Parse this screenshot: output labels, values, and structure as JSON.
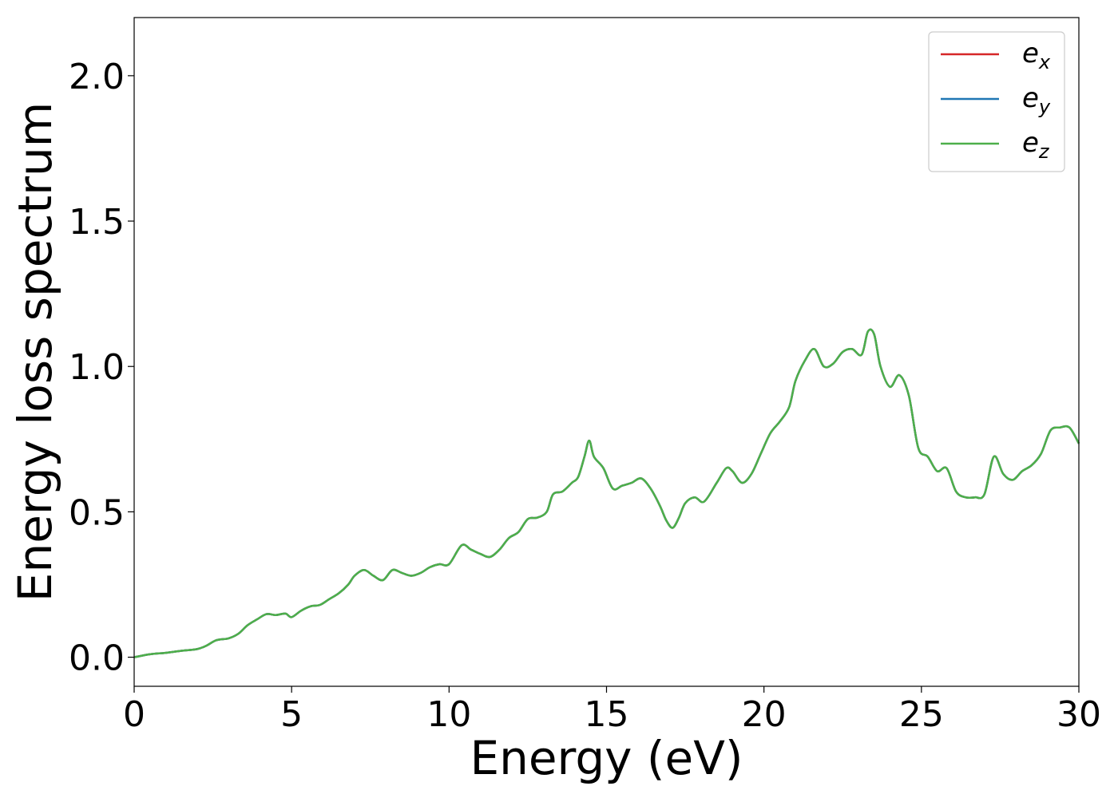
{
  "chart_data": {
    "type": "line",
    "title": "",
    "xlabel": "Energy (eV)",
    "ylabel": "Energy loss spectrum",
    "xlim": [
      0,
      30
    ],
    "ylim": [
      -0.1,
      2.2
    ],
    "xticks": [
      0,
      5,
      10,
      15,
      20,
      25,
      30
    ],
    "xtick_labels": [
      "0",
      "5",
      "10",
      "15",
      "20",
      "25",
      "30"
    ],
    "yticks": [
      0.0,
      0.5,
      1.0,
      1.5,
      2.0
    ],
    "ytick_labels": [
      "0.0",
      "0.5",
      "1.0",
      "1.5",
      "2.0"
    ],
    "grid": false,
    "legend_position": "top-right",
    "x": [
      0,
      0.5,
      1,
      1.5,
      2,
      2.3,
      2.6,
      3,
      3.3,
      3.6,
      3.9,
      4.2,
      4.5,
      4.8,
      5,
      5.3,
      5.6,
      5.9,
      6.2,
      6.5,
      6.8,
      7,
      7.3,
      7.6,
      7.9,
      8.2,
      8.5,
      8.8,
      9.1,
      9.4,
      9.7,
      10,
      10.4,
      10.7,
      11,
      11.3,
      11.6,
      11.9,
      12.2,
      12.5,
      12.8,
      13.1,
      13.3,
      13.6,
      13.9,
      14.1,
      14.3,
      14.45,
      14.6,
      14.9,
      15.2,
      15.5,
      15.8,
      16.1,
      16.4,
      16.7,
      16.9,
      17.1,
      17.3,
      17.5,
      17.8,
      18.1,
      18.5,
      18.8,
      19,
      19.3,
      19.6,
      19.9,
      20.2,
      20.5,
      20.8,
      21,
      21.3,
      21.6,
      21.9,
      22.2,
      22.5,
      22.8,
      23.1,
      23.3,
      23.5,
      23.7,
      24,
      24.3,
      24.6,
      24.9,
      25.2,
      25.5,
      25.8,
      26.1,
      26.4,
      26.7,
      27,
      27.3,
      27.6,
      27.9,
      28.2,
      28.5,
      28.8,
      29.1,
      29.4,
      29.7,
      30
    ],
    "series": [
      {
        "name": "e_x",
        "label_base": "e",
        "label_sub": "x",
        "color": "#d62728",
        "values": [
          0.0,
          0.01,
          0.015,
          0.022,
          0.028,
          0.04,
          0.058,
          0.065,
          0.08,
          0.11,
          0.13,
          0.148,
          0.145,
          0.15,
          0.138,
          0.16,
          0.175,
          0.18,
          0.2,
          0.22,
          0.25,
          0.28,
          0.3,
          0.28,
          0.265,
          0.3,
          0.29,
          0.28,
          0.29,
          0.31,
          0.32,
          0.32,
          0.385,
          0.37,
          0.355,
          0.345,
          0.37,
          0.41,
          0.43,
          0.475,
          0.48,
          0.5,
          0.56,
          0.57,
          0.6,
          0.62,
          0.69,
          0.745,
          0.69,
          0.65,
          0.58,
          0.59,
          0.6,
          0.615,
          0.58,
          0.52,
          0.47,
          0.445,
          0.48,
          0.53,
          0.55,
          0.535,
          0.6,
          0.65,
          0.64,
          0.6,
          0.63,
          0.7,
          0.77,
          0.81,
          0.86,
          0.95,
          1.02,
          1.06,
          1.0,
          1.01,
          1.05,
          1.06,
          1.04,
          1.12,
          1.11,
          1.0,
          0.93,
          0.97,
          0.9,
          0.72,
          0.69,
          0.64,
          0.65,
          0.57,
          0.55,
          0.55,
          0.56,
          0.69,
          0.63,
          0.61,
          0.64,
          0.66,
          0.7,
          0.78,
          0.79,
          0.79,
          0.735
        ]
      },
      {
        "name": "e_y",
        "label_base": "e",
        "label_sub": "y",
        "color": "#1f77b4",
        "values": [
          0.0,
          0.01,
          0.015,
          0.022,
          0.028,
          0.04,
          0.058,
          0.065,
          0.08,
          0.11,
          0.13,
          0.148,
          0.145,
          0.15,
          0.138,
          0.16,
          0.175,
          0.18,
          0.2,
          0.22,
          0.25,
          0.28,
          0.3,
          0.28,
          0.265,
          0.3,
          0.29,
          0.28,
          0.29,
          0.31,
          0.32,
          0.32,
          0.385,
          0.37,
          0.355,
          0.345,
          0.37,
          0.41,
          0.43,
          0.475,
          0.48,
          0.5,
          0.56,
          0.57,
          0.6,
          0.62,
          0.69,
          0.745,
          0.69,
          0.65,
          0.58,
          0.59,
          0.6,
          0.615,
          0.58,
          0.52,
          0.47,
          0.445,
          0.48,
          0.53,
          0.55,
          0.535,
          0.6,
          0.65,
          0.64,
          0.6,
          0.63,
          0.7,
          0.77,
          0.81,
          0.86,
          0.95,
          1.02,
          1.06,
          1.0,
          1.01,
          1.05,
          1.06,
          1.04,
          1.12,
          1.11,
          1.0,
          0.93,
          0.97,
          0.9,
          0.72,
          0.69,
          0.64,
          0.65,
          0.57,
          0.55,
          0.55,
          0.56,
          0.69,
          0.63,
          0.61,
          0.64,
          0.66,
          0.7,
          0.78,
          0.79,
          0.79,
          0.735
        ]
      },
      {
        "name": "e_z",
        "label_base": "e",
        "label_sub": "z",
        "color": "#4daf4a",
        "values": [
          0.0,
          0.01,
          0.015,
          0.022,
          0.028,
          0.04,
          0.058,
          0.065,
          0.08,
          0.11,
          0.13,
          0.148,
          0.145,
          0.15,
          0.138,
          0.16,
          0.175,
          0.18,
          0.2,
          0.22,
          0.25,
          0.28,
          0.3,
          0.28,
          0.265,
          0.3,
          0.29,
          0.28,
          0.29,
          0.31,
          0.32,
          0.32,
          0.385,
          0.37,
          0.355,
          0.345,
          0.37,
          0.41,
          0.43,
          0.475,
          0.48,
          0.5,
          0.56,
          0.57,
          0.6,
          0.62,
          0.69,
          0.745,
          0.69,
          0.65,
          0.58,
          0.59,
          0.6,
          0.615,
          0.58,
          0.52,
          0.47,
          0.445,
          0.48,
          0.53,
          0.55,
          0.535,
          0.6,
          0.65,
          0.64,
          0.6,
          0.63,
          0.7,
          0.77,
          0.81,
          0.86,
          0.95,
          1.02,
          1.06,
          1.0,
          1.01,
          1.05,
          1.06,
          1.04,
          1.12,
          1.11,
          1.0,
          0.93,
          0.97,
          0.9,
          0.72,
          0.69,
          0.64,
          0.65,
          0.57,
          0.55,
          0.55,
          0.56,
          0.69,
          0.63,
          0.61,
          0.64,
          0.66,
          0.7,
          0.78,
          0.79,
          0.79,
          0.735
        ]
      }
    ]
  }
}
